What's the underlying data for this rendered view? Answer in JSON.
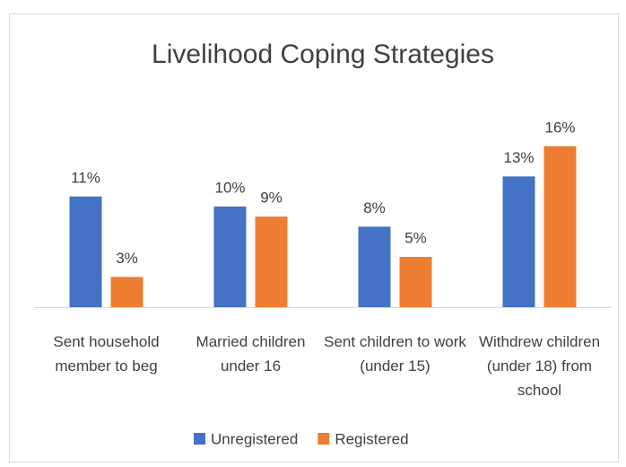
{
  "chart_data": {
    "type": "bar",
    "title": "Livelihood Coping Strategies",
    "categories": [
      "Sent household member to beg",
      "Married children under 16",
      "Sent children to work (under 15)",
      "Withdrew children (under 18) from school"
    ],
    "series": [
      {
        "name": "Unregistered",
        "color": "#4472c4",
        "values": [
          11,
          10,
          8,
          13
        ],
        "value_labels": [
          "11%",
          "10%",
          "8%",
          "13%"
        ]
      },
      {
        "name": "Registered",
        "color": "#ed7d31",
        "values": [
          3,
          9,
          5,
          16
        ],
        "value_labels": [
          "3%",
          "9%",
          "5%",
          "16%"
        ]
      }
    ],
    "legend": "bottom"
  }
}
